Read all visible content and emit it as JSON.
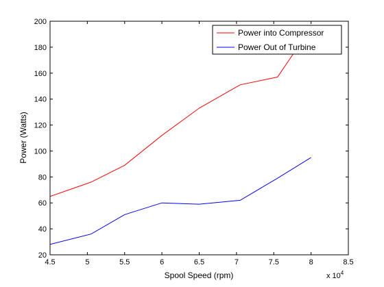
{
  "chart_data": {
    "type": "line",
    "xlabel": "Spool Speed (rpm)",
    "ylabel": "Power (Watts)",
    "x_exponent_label": "x 10",
    "x_exponent_power": "4",
    "xlim": [
      4.5,
      8.5
    ],
    "ylim": [
      20,
      200
    ],
    "x_ticks": [
      "4.5",
      "5",
      "5.5",
      "6",
      "6.5",
      "7",
      "7.5",
      "8",
      "8.5"
    ],
    "y_ticks": [
      "20",
      "40",
      "60",
      "80",
      "100",
      "120",
      "140",
      "160",
      "180",
      "200"
    ],
    "grid": false,
    "legend_position": "top-right",
    "series": [
      {
        "name": "Power into Compressor",
        "color": "#ff0000",
        "x": [
          4.5,
          5.05,
          5.5,
          6.0,
          6.5,
          7.05,
          7.55,
          8.0
        ],
        "y": [
          65,
          76,
          89,
          112,
          133,
          151,
          157,
          195
        ]
      },
      {
        "name": "Power Out of Turbine",
        "color": "#0000ff",
        "x": [
          4.5,
          5.05,
          5.5,
          6.0,
          6.5,
          7.05,
          7.55,
          8.0
        ],
        "y": [
          28,
          36,
          51,
          60,
          59,
          62,
          79,
          95
        ]
      }
    ]
  }
}
